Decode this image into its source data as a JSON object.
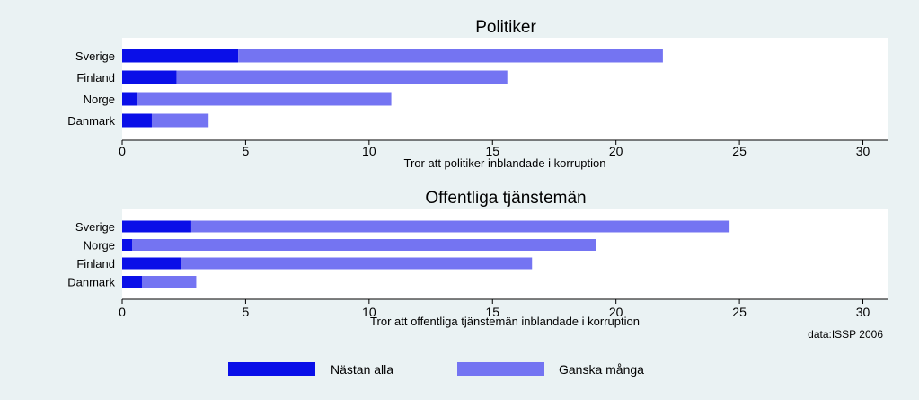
{
  "chart_data": [
    {
      "type": "bar",
      "orientation": "horizontal",
      "stacked": true,
      "title": "Politiker",
      "categories": [
        "Sverige",
        "Finland",
        "Norge",
        "Danmark"
      ],
      "series": [
        {
          "name": "Nästan alla",
          "values": [
            4.7,
            2.2,
            0.6,
            1.2
          ]
        },
        {
          "name": "Ganska många",
          "values": [
            17.2,
            13.4,
            10.3,
            2.3
          ]
        }
      ],
      "xlabel": "Tror att politiker inblandade i korruption",
      "xticks": [
        "0",
        "5",
        "10",
        "15",
        "20",
        "25",
        "30"
      ],
      "xlim": [
        0,
        31
      ],
      "grid": false
    },
    {
      "type": "bar",
      "orientation": "horizontal",
      "stacked": true,
      "title": "Offentliga tjänstemän",
      "categories": [
        "Sverige",
        "Norge",
        "Finland",
        "Danmark"
      ],
      "series": [
        {
          "name": "Nästan alla",
          "values": [
            2.8,
            0.4,
            2.4,
            0.8
          ]
        },
        {
          "name": "Ganska många",
          "values": [
            21.8,
            18.8,
            14.2,
            2.2
          ]
        }
      ],
      "xlabel": "Tror att offentliga tjänstemän inblandade i korruption",
      "xticks": [
        "0",
        "5",
        "10",
        "15",
        "20",
        "25",
        "30"
      ],
      "xlim": [
        0,
        31
      ],
      "grid": false
    }
  ],
  "note": "data:ISSP 2006",
  "legend": {
    "position": "bottom",
    "items": [
      {
        "label": "Nästan alla",
        "color": "#0a0fe8"
      },
      {
        "label": "Ganska många",
        "color": "#7474f2"
      }
    ]
  },
  "colors": {
    "background": "#eaf2f3",
    "plot_background": "#ffffff",
    "axis": "#000000"
  }
}
